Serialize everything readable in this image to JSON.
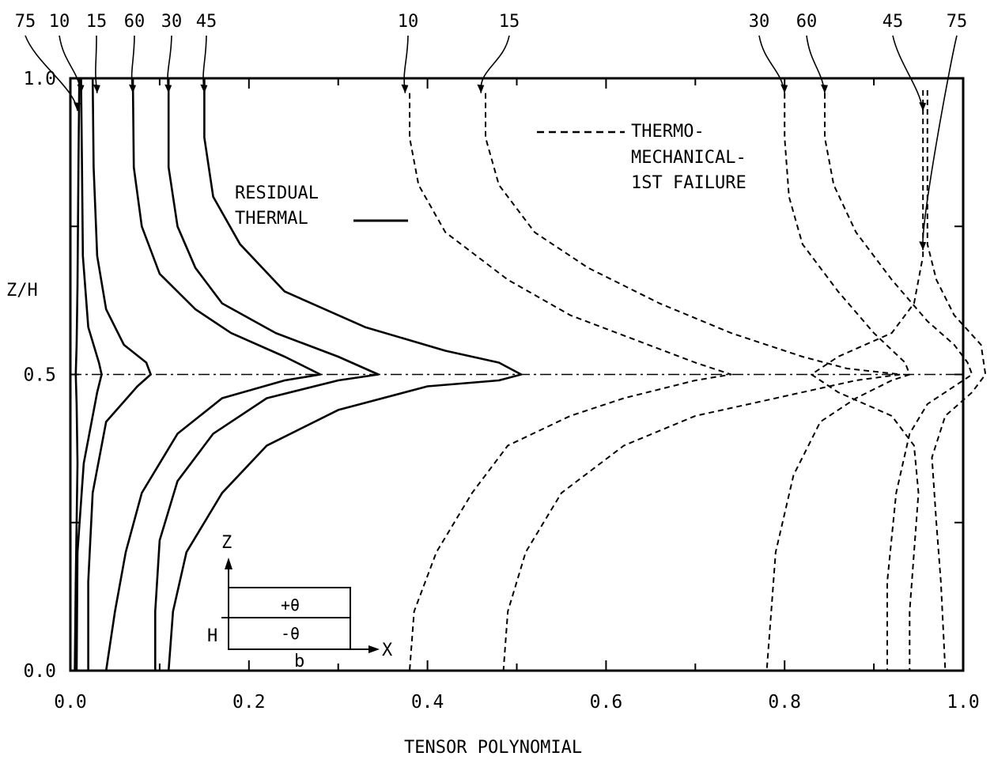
{
  "chart_data": {
    "type": "line",
    "title": "",
    "xlabel": "TENSOR POLYNOMIAL",
    "ylabel": "Z/H",
    "xlim": [
      0.0,
      1.0
    ],
    "ylim": [
      0.0,
      1.0
    ],
    "x_ticks": [
      "0.0",
      "0.2",
      "0.4",
      "0.6",
      "0.8",
      "1.0"
    ],
    "y_ticks": [
      "0.0",
      "0.5",
      "1.0"
    ],
    "legend": {
      "solid_line": [
        "RESIDUAL",
        "THERMAL"
      ],
      "dashed_line": [
        "THERMO-",
        "MECHANICAL-",
        "1ST FAILURE"
      ]
    },
    "inset": {
      "z_label": "Z",
      "x_label": "X",
      "h_label": "H",
      "b_label": "b",
      "top_ply": "+θ",
      "bottom_ply": "-θ"
    },
    "series": [
      {
        "name": "75",
        "group": "residual-thermal",
        "color": "#000000",
        "points": [
          [
            0.01,
            1.0
          ],
          [
            0.009,
            0.85
          ],
          [
            0.008,
            0.65
          ],
          [
            0.007,
            0.55
          ],
          [
            0.006,
            0.5
          ],
          [
            0.007,
            0.45
          ],
          [
            0.008,
            0.35
          ],
          [
            0.006,
            0.15
          ],
          [
            0.005,
            0.0
          ]
        ]
      },
      {
        "name": "10",
        "group": "residual-thermal",
        "color": "#000000",
        "points": [
          [
            0.012,
            1.0
          ],
          [
            0.013,
            0.85
          ],
          [
            0.014,
            0.7
          ],
          [
            0.02,
            0.58
          ],
          [
            0.032,
            0.52
          ],
          [
            0.035,
            0.5
          ],
          [
            0.03,
            0.47
          ],
          [
            0.015,
            0.35
          ],
          [
            0.008,
            0.2
          ],
          [
            0.007,
            0.0
          ]
        ]
      },
      {
        "name": "15",
        "group": "residual-thermal",
        "color": "#000000",
        "points": [
          [
            0.025,
            1.0
          ],
          [
            0.026,
            0.85
          ],
          [
            0.03,
            0.7
          ],
          [
            0.04,
            0.61
          ],
          [
            0.06,
            0.55
          ],
          [
            0.085,
            0.52
          ],
          [
            0.09,
            0.5
          ],
          [
            0.075,
            0.48
          ],
          [
            0.04,
            0.42
          ],
          [
            0.025,
            0.3
          ],
          [
            0.02,
            0.15
          ],
          [
            0.02,
            0.0
          ]
        ]
      },
      {
        "name": "60",
        "group": "residual-thermal",
        "color": "#000000",
        "points": [
          [
            0.07,
            1.0
          ],
          [
            0.071,
            0.85
          ],
          [
            0.08,
            0.75
          ],
          [
            0.1,
            0.67
          ],
          [
            0.14,
            0.61
          ],
          [
            0.18,
            0.57
          ],
          [
            0.24,
            0.53
          ],
          [
            0.28,
            0.5
          ],
          [
            0.24,
            0.49
          ],
          [
            0.17,
            0.46
          ],
          [
            0.12,
            0.4
          ],
          [
            0.08,
            0.3
          ],
          [
            0.062,
            0.2
          ],
          [
            0.05,
            0.1
          ],
          [
            0.04,
            0.0
          ]
        ]
      },
      {
        "name": "30",
        "group": "residual-thermal",
        "color": "#000000",
        "points": [
          [
            0.11,
            1.0
          ],
          [
            0.11,
            0.85
          ],
          [
            0.12,
            0.75
          ],
          [
            0.14,
            0.68
          ],
          [
            0.17,
            0.62
          ],
          [
            0.23,
            0.57
          ],
          [
            0.3,
            0.53
          ],
          [
            0.345,
            0.5
          ],
          [
            0.3,
            0.49
          ],
          [
            0.22,
            0.46
          ],
          [
            0.16,
            0.4
          ],
          [
            0.12,
            0.32
          ],
          [
            0.1,
            0.22
          ],
          [
            0.095,
            0.1
          ],
          [
            0.095,
            0.0
          ]
        ]
      },
      {
        "name": "45",
        "group": "residual-thermal",
        "color": "#000000",
        "points": [
          [
            0.15,
            1.0
          ],
          [
            0.15,
            0.9
          ],
          [
            0.16,
            0.8
          ],
          [
            0.19,
            0.72
          ],
          [
            0.24,
            0.64
          ],
          [
            0.33,
            0.58
          ],
          [
            0.42,
            0.54
          ],
          [
            0.48,
            0.52
          ],
          [
            0.505,
            0.5
          ],
          [
            0.48,
            0.49
          ],
          [
            0.4,
            0.48
          ],
          [
            0.3,
            0.44
          ],
          [
            0.22,
            0.38
          ],
          [
            0.17,
            0.3
          ],
          [
            0.13,
            0.2
          ],
          [
            0.115,
            0.1
          ],
          [
            0.11,
            0.0
          ]
        ]
      },
      {
        "name": "10",
        "group": "thermo-mechanical",
        "color": "#000000",
        "points": [
          [
            0.38,
            0.975
          ],
          [
            0.38,
            0.9
          ],
          [
            0.39,
            0.82
          ],
          [
            0.42,
            0.74
          ],
          [
            0.49,
            0.66
          ],
          [
            0.56,
            0.6
          ],
          [
            0.63,
            0.56
          ],
          [
            0.7,
            0.52
          ],
          [
            0.74,
            0.5
          ],
          [
            0.7,
            0.49
          ],
          [
            0.62,
            0.46
          ],
          [
            0.56,
            0.43
          ],
          [
            0.49,
            0.38
          ],
          [
            0.45,
            0.3
          ],
          [
            0.41,
            0.2
          ],
          [
            0.385,
            0.1
          ],
          [
            0.38,
            0.0
          ]
        ]
      },
      {
        "name": "15",
        "group": "residual-thermal-dashed",
        "color": "#000000",
        "points": [
          [
            0.465,
            0.975
          ],
          [
            0.465,
            0.9
          ],
          [
            0.48,
            0.82
          ],
          [
            0.52,
            0.74
          ],
          [
            0.58,
            0.68
          ],
          [
            0.66,
            0.62
          ],
          [
            0.74,
            0.57
          ],
          [
            0.82,
            0.53
          ],
          [
            0.87,
            0.51
          ],
          [
            0.93,
            0.5
          ],
          [
            0.88,
            0.49
          ],
          [
            0.79,
            0.46
          ],
          [
            0.7,
            0.43
          ],
          [
            0.62,
            0.38
          ],
          [
            0.55,
            0.3
          ],
          [
            0.51,
            0.2
          ],
          [
            0.49,
            0.1
          ],
          [
            0.485,
            0.0
          ]
        ]
      },
      {
        "name": "30",
        "group": "thermo-mechanical",
        "color": "#000000",
        "points": [
          [
            0.8,
            0.975
          ],
          [
            0.8,
            0.9
          ],
          [
            0.805,
            0.8
          ],
          [
            0.82,
            0.72
          ],
          [
            0.86,
            0.64
          ],
          [
            0.9,
            0.57
          ],
          [
            0.935,
            0.52
          ],
          [
            0.94,
            0.5
          ],
          [
            0.92,
            0.49
          ],
          [
            0.88,
            0.46
          ],
          [
            0.84,
            0.42
          ],
          [
            0.81,
            0.33
          ],
          [
            0.79,
            0.2
          ],
          [
            0.785,
            0.1
          ],
          [
            0.78,
            0.0
          ]
        ]
      },
      {
        "name": "60",
        "group": "thermo-mechanical",
        "color": "#000000",
        "points": [
          [
            0.845,
            0.975
          ],
          [
            0.845,
            0.9
          ],
          [
            0.855,
            0.82
          ],
          [
            0.88,
            0.74
          ],
          [
            0.92,
            0.66
          ],
          [
            0.96,
            0.59
          ],
          [
            0.99,
            0.55
          ],
          [
            1.005,
            0.52
          ],
          [
            1.01,
            0.5
          ],
          [
            0.99,
            0.48
          ],
          [
            0.96,
            0.45
          ],
          [
            0.94,
            0.4
          ],
          [
            0.925,
            0.3
          ],
          [
            0.915,
            0.15
          ],
          [
            0.915,
            0.0
          ]
        ]
      },
      {
        "name": "45",
        "group": "thermo-mechanical",
        "color": "#000000",
        "points": [
          [
            0.955,
            0.98
          ],
          [
            0.955,
            0.9
          ],
          [
            0.955,
            0.8
          ],
          [
            0.955,
            0.7
          ],
          [
            0.945,
            0.62
          ],
          [
            0.92,
            0.57
          ],
          [
            0.86,
            0.53
          ],
          [
            0.83,
            0.5
          ],
          [
            0.86,
            0.47
          ],
          [
            0.92,
            0.43
          ],
          [
            0.945,
            0.38
          ],
          [
            0.95,
            0.3
          ],
          [
            0.945,
            0.2
          ],
          [
            0.94,
            0.1
          ],
          [
            0.94,
            0.0
          ]
        ]
      },
      {
        "name": "75",
        "group": "thermo-mechanical",
        "color": "#000000",
        "points": [
          [
            0.96,
            0.98
          ],
          [
            0.96,
            0.9
          ],
          [
            0.96,
            0.8
          ],
          [
            0.96,
            0.72
          ],
          [
            0.97,
            0.66
          ],
          [
            0.99,
            0.6
          ],
          [
            1.02,
            0.55
          ],
          [
            1.025,
            0.5
          ],
          [
            1.01,
            0.47
          ],
          [
            0.98,
            0.43
          ],
          [
            0.965,
            0.36
          ],
          [
            0.97,
            0.25
          ],
          [
            0.975,
            0.15
          ],
          [
            0.98,
            0.0
          ]
        ]
      }
    ],
    "top_curve_labels": [
      "75",
      "10",
      "15",
      "60",
      "30",
      "45",
      "10",
      "15",
      "30",
      "60",
      "45",
      "75"
    ],
    "reference_line": {
      "y": 0.5,
      "style": "dash-dot"
    },
    "grid": false
  }
}
